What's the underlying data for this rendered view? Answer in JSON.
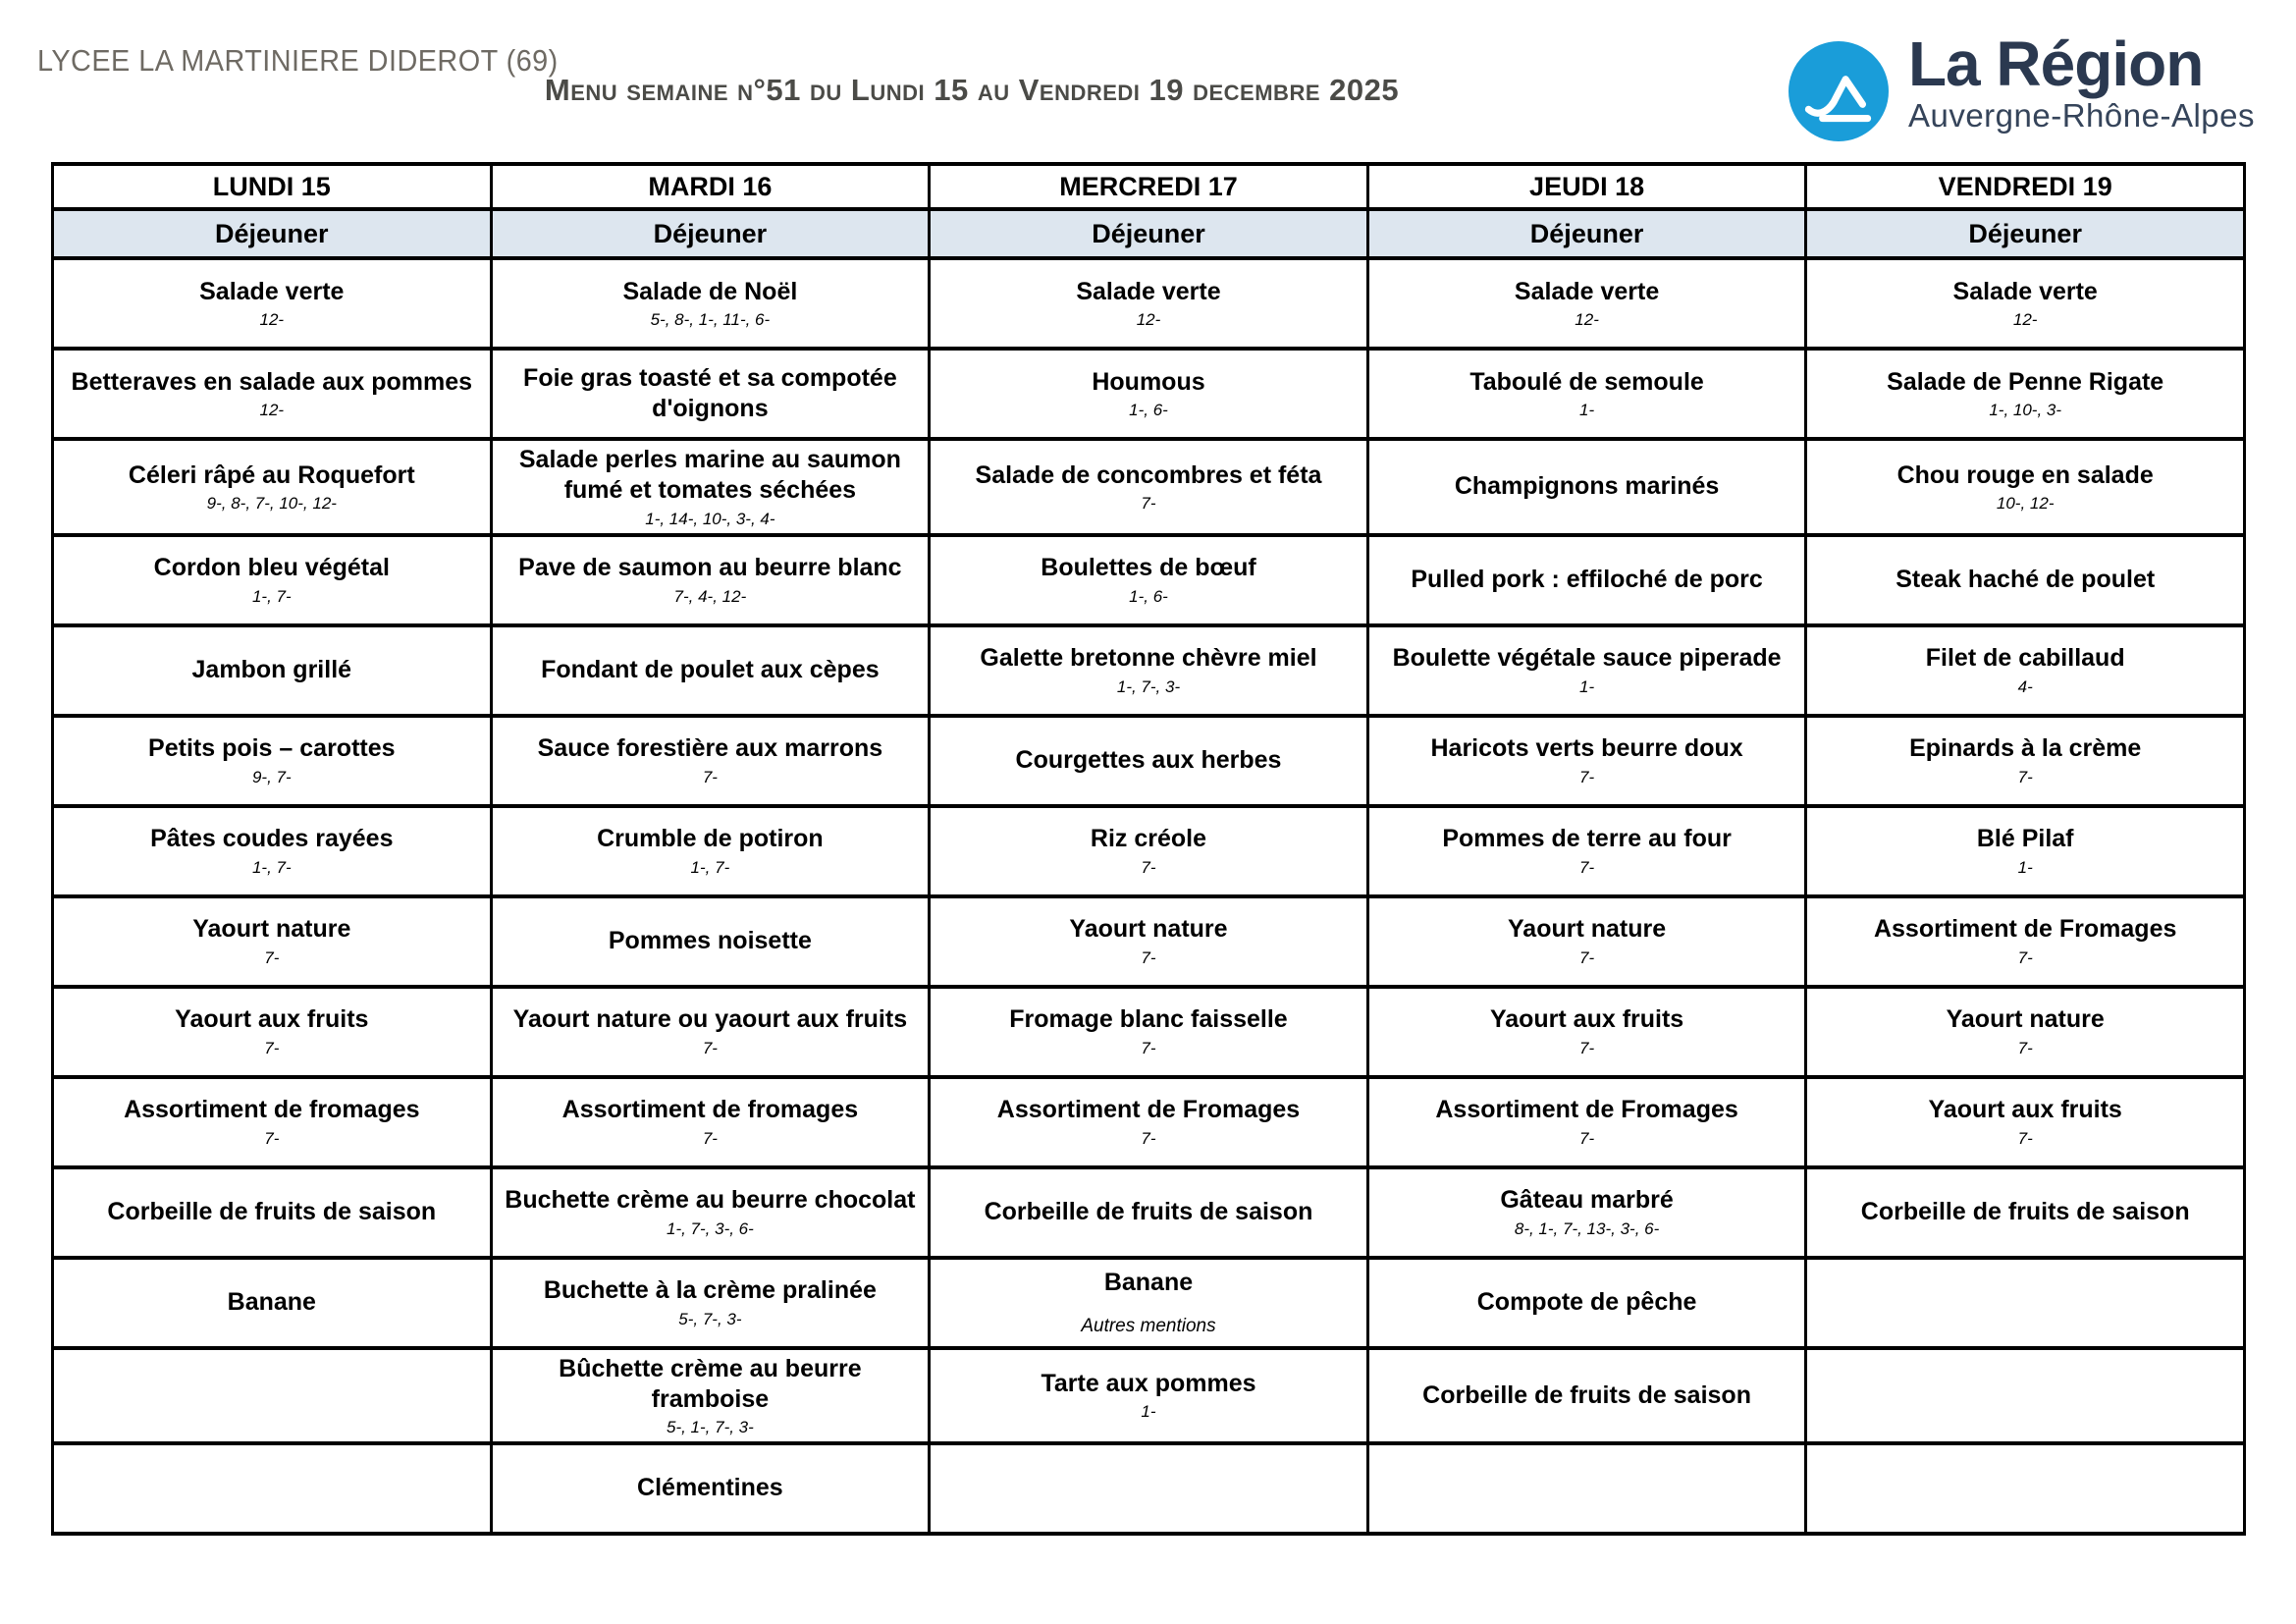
{
  "header": {
    "school": "LYCEE LA MARTINIERE DIDEROT (69)",
    "title": "Menu semaine n°51 du Lundi 15 au Vendredi 19 decembre 2025"
  },
  "logo": {
    "icon": "mountain-icon",
    "name": "La Région",
    "subtitle": "Auvergne-Rhône-Alpes",
    "circle_color": "#1A9DD9",
    "text_color": "#2B3950"
  },
  "colors": {
    "meal_row_bg": "#DDE6EF",
    "table_border": "#000000",
    "title_color": "#4B4B47",
    "school_color": "#6E6A63"
  },
  "table": {
    "days": [
      "LUNDI 15",
      "MARDI 16",
      "MERCREDI 17",
      "JEUDI 18",
      "VENDREDI 19"
    ],
    "meal_label": "Déjeuner",
    "rows": [
      [
        {
          "name": "Salade verte",
          "allergens": "12-"
        },
        {
          "name": "Salade de Noël",
          "allergens": "5-, 8-, 1-, 11-, 6-"
        },
        {
          "name": "Salade verte",
          "allergens": "12-"
        },
        {
          "name": "Salade verte",
          "allergens": "12-"
        },
        {
          "name": "Salade verte",
          "allergens": "12-"
        }
      ],
      [
        {
          "name": "Betteraves en salade aux pommes",
          "allergens": "12-"
        },
        {
          "name": "Foie gras toasté et sa compotée d'oignons",
          "allergens": ""
        },
        {
          "name": "Houmous",
          "allergens": "1-, 6-"
        },
        {
          "name": "Taboulé de semoule",
          "allergens": "1-"
        },
        {
          "name": "Salade de Penne Rigate",
          "allergens": "1-, 10-, 3-"
        }
      ],
      [
        {
          "name": "Céleri râpé au Roquefort",
          "allergens": "9-, 8-, 7-, 10-, 12-"
        },
        {
          "name": "Salade perles marine au saumon fumé et tomates séchées",
          "allergens": "1-, 14-, 10-, 3-, 4-"
        },
        {
          "name": "Salade de concombres et féta",
          "allergens": "7-"
        },
        {
          "name": "Champignons marinés",
          "allergens": ""
        },
        {
          "name": "Chou rouge en salade",
          "allergens": "10-, 12-"
        }
      ],
      [
        {
          "name": "Cordon bleu végétal",
          "allergens": "1-, 7-"
        },
        {
          "name": "Pave de saumon au beurre blanc",
          "allergens": "7-, 4-, 12-"
        },
        {
          "name": "Boulettes de bœuf",
          "allergens": "1-, 6-"
        },
        {
          "name": "Pulled pork : effiloché de porc",
          "allergens": ""
        },
        {
          "name": "Steak haché de poulet",
          "allergens": ""
        }
      ],
      [
        {
          "name": "Jambon grillé",
          "allergens": ""
        },
        {
          "name": "Fondant de poulet aux cèpes",
          "allergens": ""
        },
        {
          "name": "Galette bretonne chèvre miel",
          "allergens": "1-, 7-, 3-"
        },
        {
          "name": "Boulette végétale sauce piperade",
          "allergens": "1-"
        },
        {
          "name": "Filet de cabillaud",
          "allergens": "4-"
        }
      ],
      [
        {
          "name": "Petits pois – carottes",
          "allergens": "9-, 7-"
        },
        {
          "name": "Sauce forestière aux marrons",
          "allergens": "7-"
        },
        {
          "name": "Courgettes aux herbes",
          "allergens": ""
        },
        {
          "name": "Haricots verts beurre doux",
          "allergens": "7-"
        },
        {
          "name": "Epinards à la crème",
          "allergens": "7-"
        }
      ],
      [
        {
          "name": "Pâtes coudes rayées",
          "allergens": "1-, 7-"
        },
        {
          "name": "Crumble de potiron",
          "allergens": "1-, 7-"
        },
        {
          "name": "Riz créole",
          "allergens": "7-"
        },
        {
          "name": "Pommes de terre au four",
          "allergens": "7-"
        },
        {
          "name": "Blé Pilaf",
          "allergens": "1-"
        }
      ],
      [
        {
          "name": "Yaourt nature",
          "allergens": "7-"
        },
        {
          "name": "Pommes noisette",
          "allergens": ""
        },
        {
          "name": "Yaourt nature",
          "allergens": "7-"
        },
        {
          "name": "Yaourt nature",
          "allergens": "7-"
        },
        {
          "name": "Assortiment de Fromages",
          "allergens": "7-"
        }
      ],
      [
        {
          "name": "Yaourt aux fruits",
          "allergens": "7-"
        },
        {
          "name": "Yaourt nature ou yaourt aux fruits",
          "allergens": "7-"
        },
        {
          "name": "Fromage blanc faisselle",
          "allergens": "7-"
        },
        {
          "name": "Yaourt aux fruits",
          "allergens": "7-"
        },
        {
          "name": "Yaourt nature",
          "allergens": "7-"
        }
      ],
      [
        {
          "name": "Assortiment de fromages",
          "allergens": "7-"
        },
        {
          "name": "Assortiment de fromages",
          "allergens": "7-"
        },
        {
          "name": "Assortiment de Fromages",
          "allergens": "7-"
        },
        {
          "name": "Assortiment de Fromages",
          "allergens": "7-"
        },
        {
          "name": "Yaourt aux fruits",
          "allergens": "7-"
        }
      ],
      [
        {
          "name": "Corbeille de fruits de saison",
          "allergens": ""
        },
        {
          "name": "Buchette crème au beurre chocolat",
          "allergens": "1-, 7-, 3-, 6-"
        },
        {
          "name": "Corbeille de fruits de saison",
          "allergens": ""
        },
        {
          "name": "Gâteau marbré",
          "allergens": "8-, 1-, 7-, 13-, 3-, 6-"
        },
        {
          "name": "Corbeille de fruits de saison",
          "allergens": ""
        }
      ],
      [
        {
          "name": "Banane",
          "allergens": ""
        },
        {
          "name": "Buchette à la crème pralinée",
          "allergens": "5-, 7-, 3-"
        },
        {
          "name": "Banane",
          "allergens": "",
          "note": "Autres mentions"
        },
        {
          "name": "Compote de pêche",
          "allergens": ""
        },
        null
      ],
      [
        null,
        {
          "name": "Bûchette crème au beurre framboise",
          "allergens": "5-, 1-, 7-, 3-"
        },
        {
          "name": "Tarte aux pommes",
          "allergens": "1-"
        },
        {
          "name": "Corbeille de fruits de saison",
          "allergens": ""
        },
        null
      ],
      [
        null,
        {
          "name": "Clémentines",
          "allergens": ""
        },
        null,
        null,
        null
      ]
    ]
  }
}
